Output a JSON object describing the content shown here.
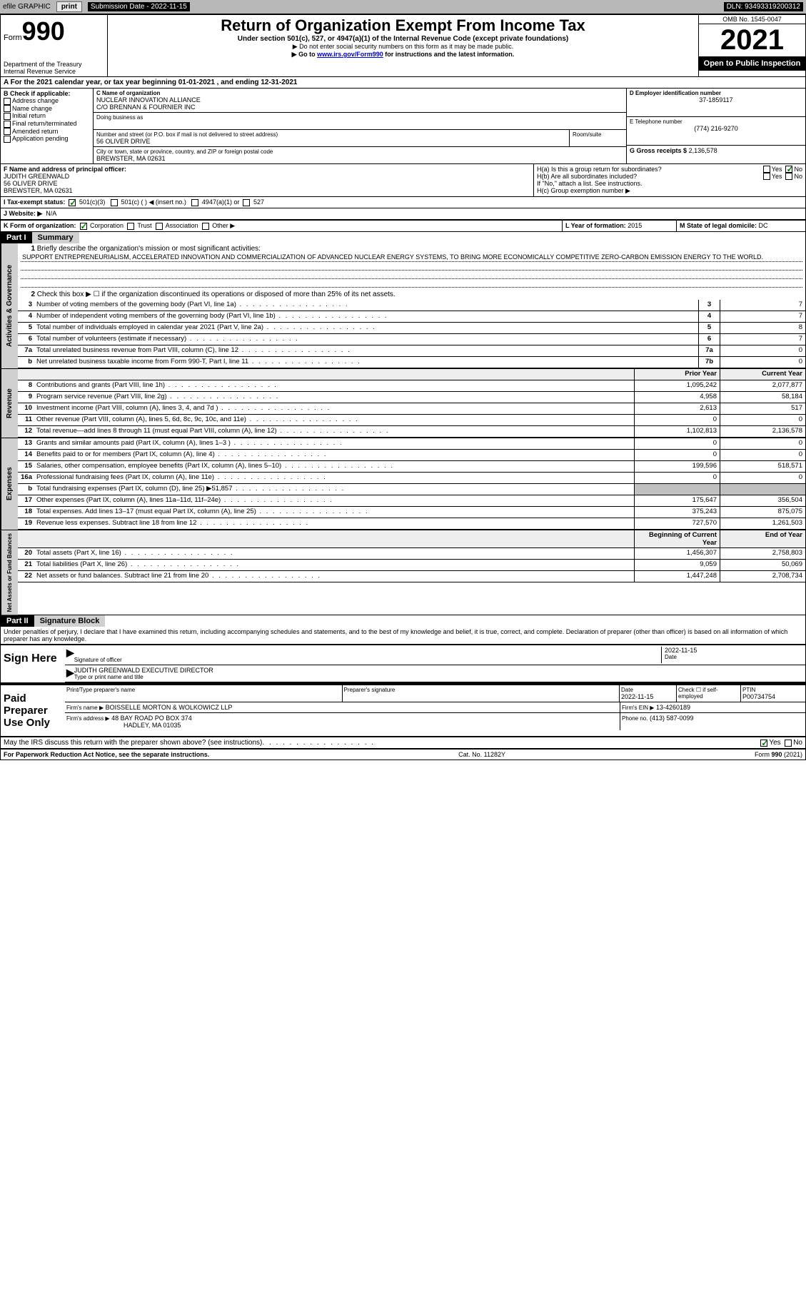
{
  "topbar": {
    "efile_label": "efile GRAPHIC",
    "print_btn": "print",
    "submission_label": "Submission Date - 2022-11-15",
    "dln_label": "DLN: 93493319200312"
  },
  "header": {
    "form_label": "Form",
    "form_number": "990",
    "dept": "Department of the Treasury Internal Revenue Service",
    "title": "Return of Organization Exempt From Income Tax",
    "subtitle": "Under section 501(c), 527, or 4947(a)(1) of the Internal Revenue Code (except private foundations)",
    "note1": "▶ Do not enter social security numbers on this form as it may be made public.",
    "note2_pre": "▶ Go to ",
    "note2_link": "www.irs.gov/Form990",
    "note2_post": " for instructions and the latest information.",
    "omb": "OMB No. 1545-0047",
    "year": "2021",
    "open_public": "Open to Public Inspection"
  },
  "line_a": "A For the 2021 calendar year, or tax year beginning 01-01-2021   , and ending 12-31-2021",
  "section_b": {
    "label": "B Check if applicable:",
    "items": [
      "Address change",
      "Name change",
      "Initial return",
      "Final return/terminated",
      "Amended return",
      "Application pending"
    ]
  },
  "section_c": {
    "name_label": "C Name of organization",
    "name1": "NUCLEAR INNOVATION ALLIANCE",
    "name2": "C/O BRENNAN & FOURNIER INC",
    "dba_label": "Doing business as",
    "addr_label": "Number and street (or P.O. box if mail is not delivered to street address)",
    "room_label": "Room/suite",
    "addr": "56 OLIVER DRIVE",
    "city_label": "City or town, state or province, country, and ZIP or foreign postal code",
    "city": "BREWSTER, MA  02631"
  },
  "section_d": {
    "ein_label": "D Employer identification number",
    "ein": "37-1859117",
    "phone_label": "E Telephone number",
    "phone": "(774) 216-9270",
    "gross_label": "G Gross receipts $",
    "gross": "2,136,578"
  },
  "officer": {
    "label": "F  Name and address of principal officer:",
    "name": "JUDITH GREENWALD",
    "addr1": "56 OLIVER DRIVE",
    "addr2": "BREWSTER, MA  02631"
  },
  "section_h": {
    "ha": "H(a)  Is this a group return for subordinates?",
    "hb": "H(b)  Are all subordinates included?",
    "hb_note": "If \"No,\" attach a list. See instructions.",
    "hc": "H(c)  Group exemption number ▶",
    "yes": "Yes",
    "no": "No"
  },
  "tax_status": {
    "label": "I  Tax-exempt status:",
    "opt1": "501(c)(3)",
    "opt2": "501(c) (  ) ◀ (insert no.)",
    "opt3": "4947(a)(1) or",
    "opt4": "527"
  },
  "website": {
    "label": "J  Website: ▶",
    "value": "N/A"
  },
  "section_k": {
    "label": "K Form of organization:",
    "opts": [
      "Corporation",
      "Trust",
      "Association",
      "Other ▶"
    ],
    "l_label": "L Year of formation:",
    "l_val": "2015",
    "m_label": "M State of legal domicile:",
    "m_val": "DC"
  },
  "part1": {
    "header": "Part I",
    "title": "Summary",
    "q1_label": "1",
    "q1_txt": "Briefly describe the organization's mission or most significant activities:",
    "mission": "SUPPORT ENTREPRENEURIALISM, ACCELERATED INNOVATION AND COMMERCIALIZATION OF ADVANCED NUCLEAR ENERGY SYSTEMS, TO BRING MORE ECONOMICALLY COMPETITIVE ZERO-CARBON EMISSION ENERGY TO THE WORLD.",
    "q2_txt": "Check this box ▶ ☐ if the organization discontinued its operations or disposed of more than 25% of its net assets.",
    "prior_year": "Prior Year",
    "current_year": "Current Year",
    "beg_year": "Beginning of Current Year",
    "end_year": "End of Year",
    "vtab_act": "Activities & Governance",
    "vtab_rev": "Revenue",
    "vtab_exp": "Expenses",
    "vtab_net": "Net Assets or Fund Balances",
    "lines_gov": [
      {
        "n": "3",
        "t": "Number of voting members of the governing body (Part VI, line 1a)",
        "box": "3",
        "v": "7"
      },
      {
        "n": "4",
        "t": "Number of independent voting members of the governing body (Part VI, line 1b)",
        "box": "4",
        "v": "7"
      },
      {
        "n": "5",
        "t": "Total number of individuals employed in calendar year 2021 (Part V, line 2a)",
        "box": "5",
        "v": "8"
      },
      {
        "n": "6",
        "t": "Total number of volunteers (estimate if necessary)",
        "box": "6",
        "v": "7"
      },
      {
        "n": "7a",
        "t": "Total unrelated business revenue from Part VIII, column (C), line 12",
        "box": "7a",
        "v": "0"
      },
      {
        "n": "b",
        "t": "Net unrelated business taxable income from Form 990-T, Part I, line 11",
        "box": "7b",
        "v": "0"
      }
    ],
    "lines_rev": [
      {
        "n": "8",
        "t": "Contributions and grants (Part VIII, line 1h)",
        "py": "1,095,242",
        "cy": "2,077,877"
      },
      {
        "n": "9",
        "t": "Program service revenue (Part VIII, line 2g)",
        "py": "4,958",
        "cy": "58,184"
      },
      {
        "n": "10",
        "t": "Investment income (Part VIII, column (A), lines 3, 4, and 7d )",
        "py": "2,613",
        "cy": "517"
      },
      {
        "n": "11",
        "t": "Other revenue (Part VIII, column (A), lines 5, 6d, 8c, 9c, 10c, and 11e)",
        "py": "0",
        "cy": "0"
      },
      {
        "n": "12",
        "t": "Total revenue—add lines 8 through 11 (must equal Part VIII, column (A), line 12)",
        "py": "1,102,813",
        "cy": "2,136,578"
      }
    ],
    "lines_exp": [
      {
        "n": "13",
        "t": "Grants and similar amounts paid (Part IX, column (A), lines 1–3 )",
        "py": "0",
        "cy": "0"
      },
      {
        "n": "14",
        "t": "Benefits paid to or for members (Part IX, column (A), line 4)",
        "py": "0",
        "cy": "0"
      },
      {
        "n": "15",
        "t": "Salaries, other compensation, employee benefits (Part IX, column (A), lines 5–10)",
        "py": "199,596",
        "cy": "518,571"
      },
      {
        "n": "16a",
        "t": "Professional fundraising fees (Part IX, column (A), line 11e)",
        "py": "0",
        "cy": "0"
      },
      {
        "n": "b",
        "t": "Total fundraising expenses (Part IX, column (D), line 25) ▶51,857",
        "py": "",
        "cy": "",
        "grey": true
      },
      {
        "n": "17",
        "t": "Other expenses (Part IX, column (A), lines 11a–11d, 11f–24e)",
        "py": "175,647",
        "cy": "356,504"
      },
      {
        "n": "18",
        "t": "Total expenses. Add lines 13–17 (must equal Part IX, column (A), line 25)",
        "py": "375,243",
        "cy": "875,075"
      },
      {
        "n": "19",
        "t": "Revenue less expenses. Subtract line 18 from line 12",
        "py": "727,570",
        "cy": "1,261,503"
      }
    ],
    "lines_net": [
      {
        "n": "20",
        "t": "Total assets (Part X, line 16)",
        "py": "1,456,307",
        "cy": "2,758,803"
      },
      {
        "n": "21",
        "t": "Total liabilities (Part X, line 26)",
        "py": "9,059",
        "cy": "50,069"
      },
      {
        "n": "22",
        "t": "Net assets or fund balances. Subtract line 21 from line 20",
        "py": "1,447,248",
        "cy": "2,708,734"
      }
    ]
  },
  "part2": {
    "header": "Part II",
    "title": "Signature Block",
    "declaration": "Under penalties of perjury, I declare that I have examined this return, including accompanying schedules and statements, and to the best of my knowledge and belief, it is true, correct, and complete. Declaration of preparer (other than officer) is based on all information of which preparer has any knowledge.",
    "sign_here": "Sign Here",
    "sig_officer": "Signature of officer",
    "date_label": "Date",
    "sig_date": "2022-11-15",
    "officer_name": "JUDITH GREENWALD  EXECUTIVE DIRECTOR",
    "type_name": "Type or print name and title",
    "paid_label": "Paid Preparer Use Only",
    "prep_name_label": "Print/Type preparer's name",
    "prep_sig_label": "Preparer's signature",
    "prep_date_label": "Date",
    "prep_date": "2022-11-15",
    "check_if": "Check ☐ if self-employed",
    "ptin_label": "PTIN",
    "ptin": "P00734754",
    "firm_name_label": "Firm's name    ▶",
    "firm_name": "BOISSELLE MORTON & WOLKOWICZ LLP",
    "firm_ein_label": "Firm's EIN ▶",
    "firm_ein": "13-4260189",
    "firm_addr_label": "Firm's address ▶",
    "firm_addr1": "48 BAY ROAD PO BOX 374",
    "firm_addr2": "HADLEY, MA  01035",
    "firm_phone_label": "Phone no.",
    "firm_phone": "(413) 587-0099",
    "may_irs": "May the IRS discuss this return with the preparer shown above? (see instructions)"
  },
  "footer": {
    "left": "For Paperwork Reduction Act Notice, see the separate instructions.",
    "mid": "Cat. No. 11282Y",
    "right": "Form 990 (2021)"
  }
}
